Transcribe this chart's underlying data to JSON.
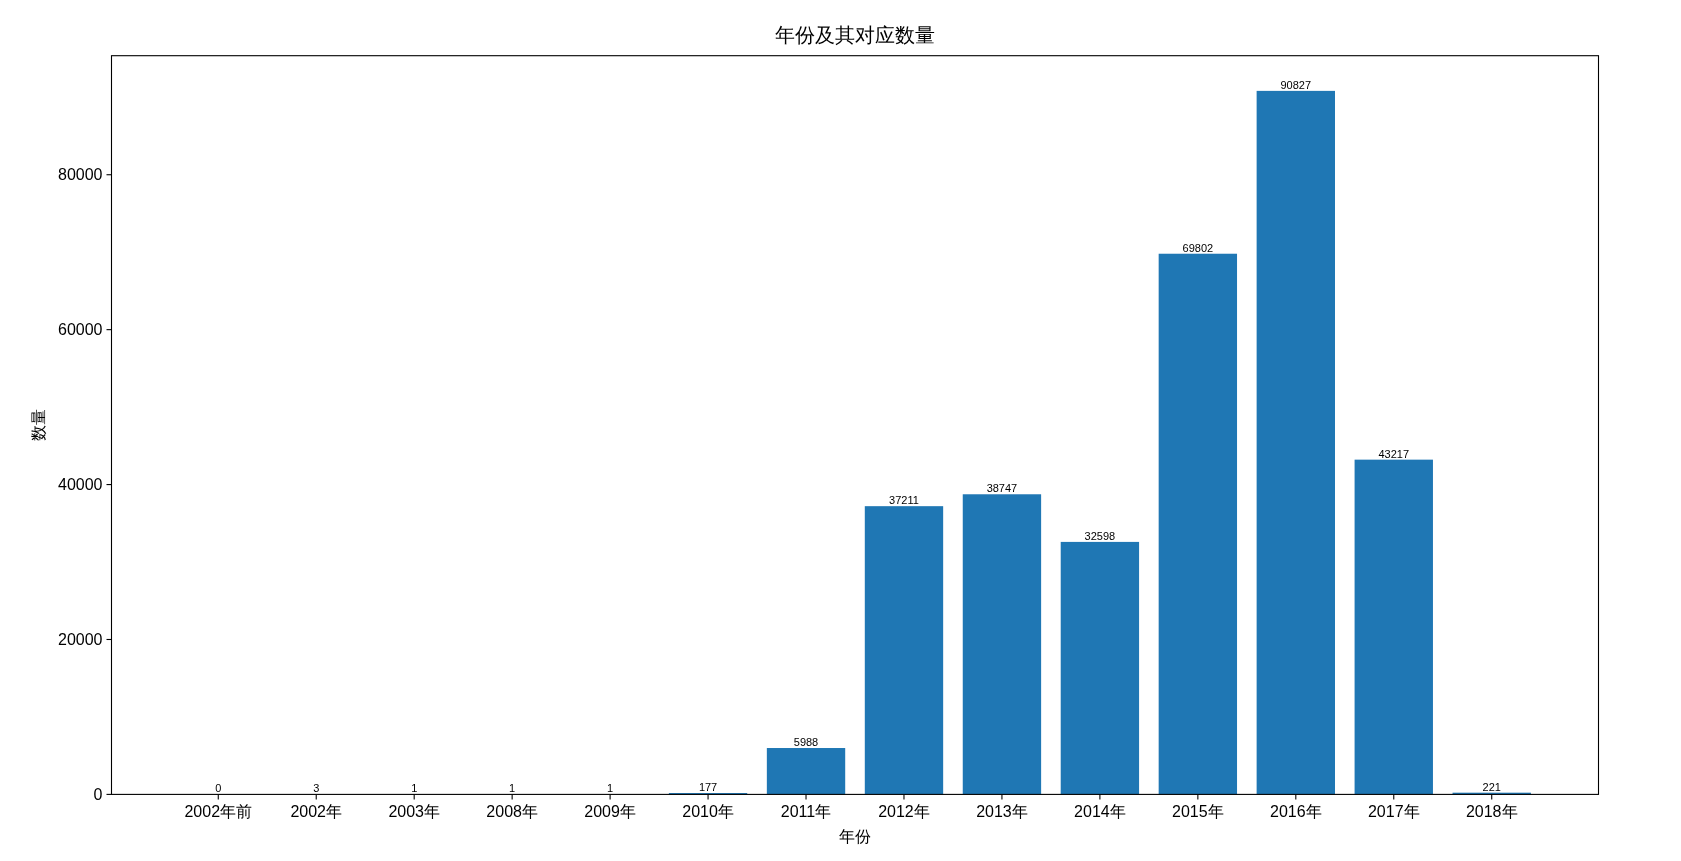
{
  "chart_data": {
    "type": "bar",
    "title": "年份及其对应数量",
    "xlabel": "年份",
    "ylabel": "数量",
    "categories": [
      "2002年前",
      "2002年",
      "2003年",
      "2008年",
      "2009年",
      "2010年",
      "2011年",
      "2012年",
      "2013年",
      "2014年",
      "2015年",
      "2016年",
      "2017年",
      "2018年"
    ],
    "values": [
      0,
      3,
      1,
      1,
      1,
      177,
      5988,
      37211,
      38747,
      32598,
      69802,
      90827,
      43217,
      221
    ],
    "color": "#1f77b4",
    "ylim": [
      0,
      95368
    ],
    "yticks": [
      0,
      20000,
      40000,
      60000,
      80000
    ],
    "data_labels": true
  }
}
